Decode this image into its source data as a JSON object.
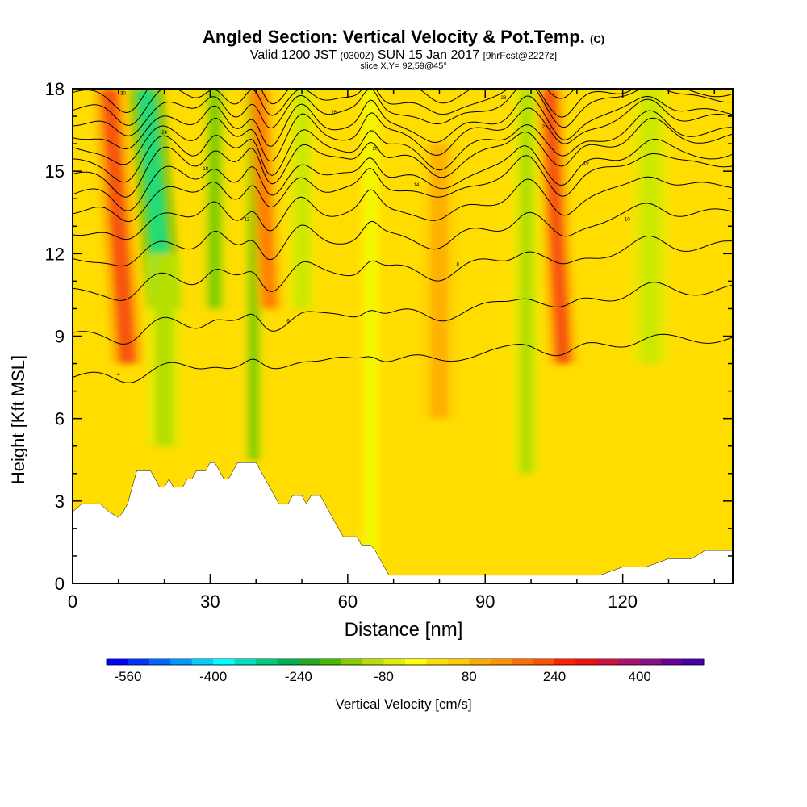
{
  "header": {
    "title": "Angled Section: Vertical Velocity & Pot.Temp.",
    "title_tag": "(C)",
    "valid_prefix": "Valid 1200 JST",
    "valid_zulu": "(0300Z)",
    "valid_date": "SUN 15 Jan 2017",
    "forecast_info": "[9hrFcst@2227z]",
    "slice_info": "slice X,Y= 92,59@45°"
  },
  "chart_data": {
    "type": "heatmap",
    "xlabel": "Distance [nm]",
    "ylabel": "Height [Kft MSL]",
    "xlim": [
      0,
      144
    ],
    "ylim": [
      0,
      18
    ],
    "x_ticks": [
      0,
      30,
      60,
      90,
      120
    ],
    "y_ticks": [
      0,
      3,
      6,
      9,
      12,
      15,
      18
    ],
    "colorbar": {
      "label": "Vertical Velocity [cm/s]",
      "tick_labels": [
        -560,
        -400,
        -240,
        -80,
        80,
        240,
        400
      ],
      "min": -600,
      "max": 520,
      "step": 40,
      "colors": [
        "#0000ff",
        "#0033ff",
        "#0066ff",
        "#0099ff",
        "#00ccff",
        "#00ffff",
        "#00e0c0",
        "#00cc80",
        "#00b050",
        "#22aa22",
        "#44bb00",
        "#88cc00",
        "#bbdd00",
        "#ddee00",
        "#ffff00",
        "#ffdd00",
        "#ffcc00",
        "#ffaa00",
        "#ff9000",
        "#ff7000",
        "#ff5000",
        "#ff2000",
        "#ee1010",
        "#cc1040",
        "#aa1070",
        "#881088",
        "#660099",
        "#4400aa"
      ]
    },
    "velocity_bands": [
      {
        "x": 12,
        "w": 3.5,
        "z0": 8,
        "z1": 18,
        "lean": -0.4,
        "v": 300
      },
      {
        "x": 20,
        "w": 4,
        "z0": 10,
        "z1": 18,
        "lean": -0.5,
        "v": -400
      },
      {
        "x": 20,
        "w": 4,
        "z0": 5,
        "z1": 12,
        "lean": 0,
        "v": -160
      },
      {
        "x": 31,
        "w": 2.5,
        "z0": 10,
        "z1": 18,
        "lean": 0,
        "v": -200
      },
      {
        "x": 39.5,
        "w": 2,
        "z0": 4.5,
        "z1": 18,
        "lean": 0,
        "v": -200
      },
      {
        "x": 43,
        "w": 3,
        "z0": 10,
        "z1": 18,
        "lean": -0.3,
        "v": 200
      },
      {
        "x": 50,
        "w": 3,
        "z0": 10,
        "z1": 18,
        "lean": 0,
        "v": -120
      },
      {
        "x": 65,
        "w": 2,
        "z0": 0,
        "z1": 18,
        "lean": 0,
        "v": -80
      },
      {
        "x": 80,
        "w": 4,
        "z0": 6,
        "z1": 16,
        "lean": 0,
        "v": 120
      },
      {
        "x": 99,
        "w": 3,
        "z0": 4,
        "z1": 18,
        "lean": 0,
        "v": -160
      },
      {
        "x": 107,
        "w": 3,
        "z0": 8,
        "z1": 18,
        "lean": -0.3,
        "v": 280
      },
      {
        "x": 126,
        "w": 4,
        "z0": 8,
        "z1": 18,
        "lean": 0,
        "v": -120
      }
    ],
    "terrain": {
      "x": [
        0,
        2,
        4,
        6,
        8,
        10,
        11,
        12,
        13,
        14,
        15,
        16,
        17,
        18,
        19,
        20,
        21,
        22,
        23,
        24,
        25,
        26,
        27,
        28,
        29,
        30,
        31,
        32,
        33,
        34,
        35,
        36,
        37,
        38,
        39,
        40,
        41,
        42,
        43,
        44,
        45,
        46,
        47,
        48,
        49,
        50,
        51,
        52,
        53,
        54,
        55,
        56,
        57,
        58,
        59,
        60,
        61,
        62,
        63,
        64,
        65,
        66,
        67,
        68,
        69,
        70,
        72,
        75,
        80,
        85,
        90,
        95,
        100,
        105,
        110,
        115,
        120,
        125,
        130,
        135,
        138,
        140,
        142,
        144
      ],
      "z": [
        2.6,
        2.9,
        2.9,
        2.9,
        2.6,
        2.4,
        2.6,
        2.9,
        3.5,
        4.1,
        4.1,
        4.1,
        4.1,
        3.8,
        3.5,
        3.5,
        3.8,
        3.5,
        3.5,
        3.5,
        3.8,
        3.8,
        4.1,
        4.1,
        4.1,
        4.4,
        4.4,
        4.1,
        3.8,
        3.8,
        4.1,
        4.4,
        4.4,
        4.4,
        4.4,
        4.4,
        4.1,
        3.8,
        3.5,
        3.2,
        2.9,
        2.9,
        2.9,
        3.2,
        3.2,
        3.2,
        2.9,
        3.2,
        3.2,
        3.2,
        2.9,
        2.6,
        2.3,
        2.0,
        1.7,
        1.7,
        1.7,
        1.7,
        1.4,
        1.4,
        1.4,
        1.2,
        0.9,
        0.6,
        0.3,
        0.3,
        0.3,
        0.3,
        0.3,
        0.3,
        0.3,
        0.3,
        0.3,
        0.3,
        0.3,
        0.3,
        0.6,
        0.6,
        0.9,
        0.9,
        1.2,
        1.2,
        1.2,
        1.2
      ]
    },
    "theta_contours": [
      {
        "z0": 7.5,
        "slope": 0.01,
        "amp": 0.4,
        "label": "4"
      },
      {
        "z0": 9.0,
        "slope": 0.012,
        "amp": 0.6,
        "label": "6"
      },
      {
        "z0": 10.6,
        "slope": 0.012,
        "amp": 0.8,
        "label": "8"
      },
      {
        "z0": 11.8,
        "slope": 0.012,
        "amp": 1.0,
        "label": "10"
      },
      {
        "z0": 12.8,
        "slope": 0.012,
        "amp": 1.2,
        "label": "12"
      },
      {
        "z0": 13.6,
        "slope": 0.012,
        "amp": 1.3,
        "label": "14"
      },
      {
        "z0": 14.2,
        "slope": 0.01,
        "amp": 1.4,
        "label": "16"
      },
      {
        "z0": 14.8,
        "slope": 0.01,
        "amp": 1.5,
        "label": "18"
      },
      {
        "z0": 15.3,
        "slope": 0.008,
        "amp": 1.5,
        "label": "20"
      },
      {
        "z0": 15.8,
        "slope": 0.008,
        "amp": 1.5,
        "label": "22"
      },
      {
        "z0": 16.3,
        "slope": 0.006,
        "amp": 1.5,
        "label": "24"
      },
      {
        "z0": 16.8,
        "slope": 0.006,
        "amp": 1.4,
        "label": "26"
      },
      {
        "z0": 17.3,
        "slope": 0.004,
        "amp": 1.3,
        "label": "28"
      },
      {
        "z0": 17.8,
        "slope": 0.004,
        "amp": 1.2,
        "label": "30"
      }
    ]
  }
}
